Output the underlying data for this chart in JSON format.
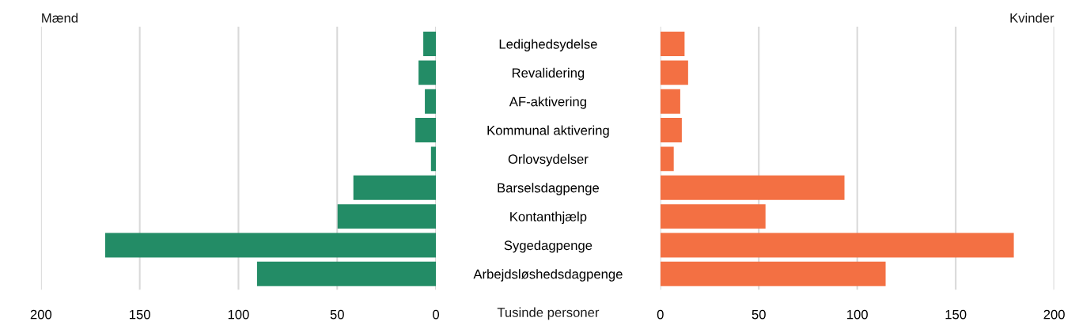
{
  "chart_data": [
    {
      "type": "bar",
      "orientation": "horizontal",
      "categories": [
        "Ledighedsydelse",
        "Revalidering",
        "AF-aktivering",
        "Kommunal aktivering",
        "Orlovsydelser",
        "Barselsdagpenge",
        "Kontanthjælp",
        "Sygedagpenge",
        "Arbejdsløshedsdagpenge"
      ],
      "xlabel": "Tusinde personer",
      "series": [
        {
          "name": "Mænd",
          "color": "#238c66",
          "values": [
            6.4,
            8.8,
            5.6,
            10.4,
            2.5,
            41.8,
            49.8,
            167.5,
            90.6
          ]
        }
      ],
      "xlim": [
        200,
        0
      ],
      "xticks": [
        200,
        150,
        100,
        50,
        0
      ],
      "grid": "x"
    },
    {
      "type": "bar",
      "orientation": "horizontal",
      "categories": [
        null,
        null,
        null,
        null,
        null,
        null,
        null,
        null,
        null
      ],
      "tick_labels": "x",
      "series": [
        {
          "name": "Kvinder",
          "color": "#f37043",
          "values": [
            12.3,
            14.1,
            10.1,
            10.9,
            6.8,
            93.5,
            53.4,
            179.5,
            114.4
          ]
        }
      ],
      "xlim": [
        0,
        200
      ],
      "xticks": [
        0,
        50,
        100,
        150,
        200
      ],
      "grid": "x"
    }
  ]
}
